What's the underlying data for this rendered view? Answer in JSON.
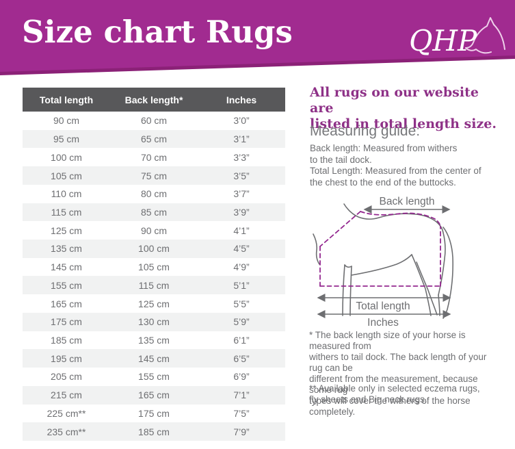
{
  "header": {
    "title": "Size chart Rugs",
    "logo_text": "QHP"
  },
  "table": {
    "columns": [
      "Total length",
      "Back length*",
      "Inches"
    ],
    "rows": [
      [
        "90 cm",
        "60 cm",
        "3’0”"
      ],
      [
        "95 cm",
        "65 cm",
        "3’1”"
      ],
      [
        "100 cm",
        "70 cm",
        "3’3”"
      ],
      [
        "105 cm",
        "75 cm",
        "3’5”"
      ],
      [
        "110 cm",
        "80 cm",
        "3’7”"
      ],
      [
        "115 cm",
        "85 cm",
        "3’9”"
      ],
      [
        "125 cm",
        "90 cm",
        "4’1”"
      ],
      [
        "135 cm",
        "100 cm",
        "4’5”"
      ],
      [
        "145 cm",
        "105 cm",
        "4’9”"
      ],
      [
        "155 cm",
        "115 cm",
        "5’1”"
      ],
      [
        "165 cm",
        "125 cm",
        "5’5”"
      ],
      [
        "175 cm",
        "130 cm",
        "5’9”"
      ],
      [
        "185 cm",
        "135 cm",
        "6’1”"
      ],
      [
        "195 cm",
        "145 cm",
        "6’5”"
      ],
      [
        "205 cm",
        "155 cm",
        "6’9”"
      ],
      [
        "215 cm",
        "165 cm",
        "7’1”"
      ],
      [
        "225 cm**",
        "175 cm",
        "7’5”"
      ],
      [
        "235 cm**",
        "185 cm",
        "7’9”"
      ]
    ]
  },
  "sidebar": {
    "intro_heading": "All rugs on our website are\nlisted in total length size.",
    "measuring_heading": "Measuring guide:",
    "measuring_text": "Back length: Measured from withers\nto the tail dock.\nTotal Length: Measured from the center of\nthe chest to the end of the buttocks.",
    "diagram": {
      "back_length_label": "Back length",
      "total_length_label": "Total length",
      "inches_label": "Inches"
    },
    "footnote_one": "* The back length size of your horse is measured from\nwithers to tail dock. The back length of your rug can be\ndifferent from the measurement, because some rug\ntypes will cover the withers of the horse completely.",
    "footnote_two": "** Available only in selected eczema rugs,\nfly sheets and Big neck rugs."
  },
  "colors": {
    "brand_purple": "#a12b90",
    "brand_purple_dark": "#8b2177",
    "heading_purple": "#8e3187",
    "table_header_gray": "#58585a",
    "text_gray": "#6d6e71",
    "row_alt_gray": "#f1f2f2"
  }
}
